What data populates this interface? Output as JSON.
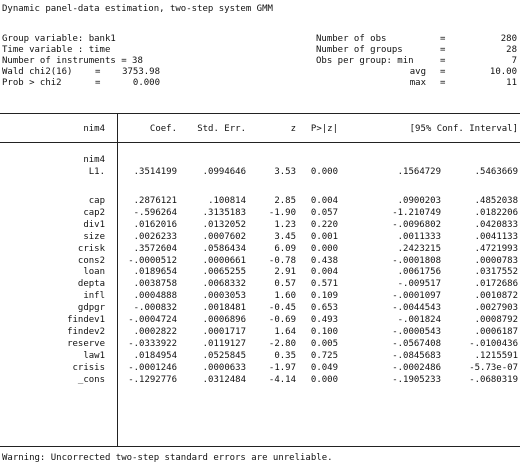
{
  "title": "Dynamic panel-data estimation, two-step system GMM",
  "header_left": [
    {
      "label": "Group variable:",
      "eq": "",
      "value": "bank1"
    },
    {
      "label": "Time variable :",
      "eq": "",
      "value": "time"
    },
    {
      "label": "Number of instruments =",
      "eq": "",
      "value": "38"
    },
    {
      "label": "Wald chi2(16)",
      "eq": "=",
      "value": "3753.98"
    },
    {
      "label": "Prob > chi2",
      "eq": "=",
      "value": "0.000"
    }
  ],
  "header_right": [
    {
      "label": "Number of obs",
      "eq": "=",
      "value": "280"
    },
    {
      "label": "Number of groups",
      "eq": "=",
      "value": "28"
    },
    {
      "label": "Obs per group: min",
      "eq": "=",
      "value": "7"
    },
    {
      "label": "avg",
      "eq": "=",
      "value": "10.00"
    },
    {
      "label": "max",
      "eq": "=",
      "value": "11"
    }
  ],
  "columns": [
    "nim4",
    "Coef.",
    "Std. Err.",
    "z",
    "P>|z|",
    "[95% Conf. Interval]"
  ],
  "group_label": "nim4",
  "rows": [
    [
      "L1.",
      ".3514199",
      ".0994646",
      "3.53",
      "0.000",
      ".1564729",
      ".5463669"
    ],
    [
      "cap",
      ".2876121",
      ".100814",
      "2.85",
      "0.004",
      ".0900203",
      ".4852038"
    ],
    [
      "cap2",
      "-.596264",
      ".3135183",
      "-1.90",
      "0.057",
      "-1.210749",
      ".0182206"
    ],
    [
      "div1",
      ".0162016",
      ".0132052",
      "1.23",
      "0.220",
      "-.0096802",
      ".0420833"
    ],
    [
      "size",
      ".0026233",
      ".0007602",
      "3.45",
      "0.001",
      ".0011333",
      ".0041133"
    ],
    [
      "crisk",
      ".3572604",
      ".0586434",
      "6.09",
      "0.000",
      ".2423215",
      ".4721993"
    ],
    [
      "cons2",
      "-.0000512",
      ".0000661",
      "-0.78",
      "0.438",
      "-.0001808",
      ".0000783"
    ],
    [
      "loan",
      ".0189654",
      ".0065255",
      "2.91",
      "0.004",
      ".0061756",
      ".0317552"
    ],
    [
      "depta",
      ".0038758",
      ".0068332",
      "0.57",
      "0.571",
      "-.009517",
      ".0172686"
    ],
    [
      "infl",
      ".0004888",
      ".0003053",
      "1.60",
      "0.109",
      "-.0001097",
      ".0010872"
    ],
    [
      "gdpgr",
      "-.000832",
      ".0018481",
      "-0.45",
      "0.653",
      "-.0044543",
      ".0027903"
    ],
    [
      "findev1",
      "-.0004724",
      ".0006896",
      "-0.69",
      "0.493",
      "-.001824",
      ".0008792"
    ],
    [
      "findev2",
      ".0002822",
      ".0001717",
      "1.64",
      "0.100",
      "-.0000543",
      ".0006187"
    ],
    [
      "reserve",
      "-.0333922",
      ".0119127",
      "-2.80",
      "0.005",
      "-.0567408",
      "-.0100436"
    ],
    [
      "law1",
      ".0184954",
      ".0525845",
      "0.35",
      "0.725",
      "-.0845683",
      ".1215591"
    ],
    [
      "crisis",
      "-.0001246",
      ".0000633",
      "-1.97",
      "0.049",
      "-.0002486",
      "-5.73e-07"
    ],
    [
      "_cons",
      "-.1292776",
      ".0312484",
      "-4.14",
      "0.000",
      "-.1905233",
      "-.0680319"
    ]
  ],
  "warning": "Warning: Uncorrected two-step standard errors are unreliable."
}
